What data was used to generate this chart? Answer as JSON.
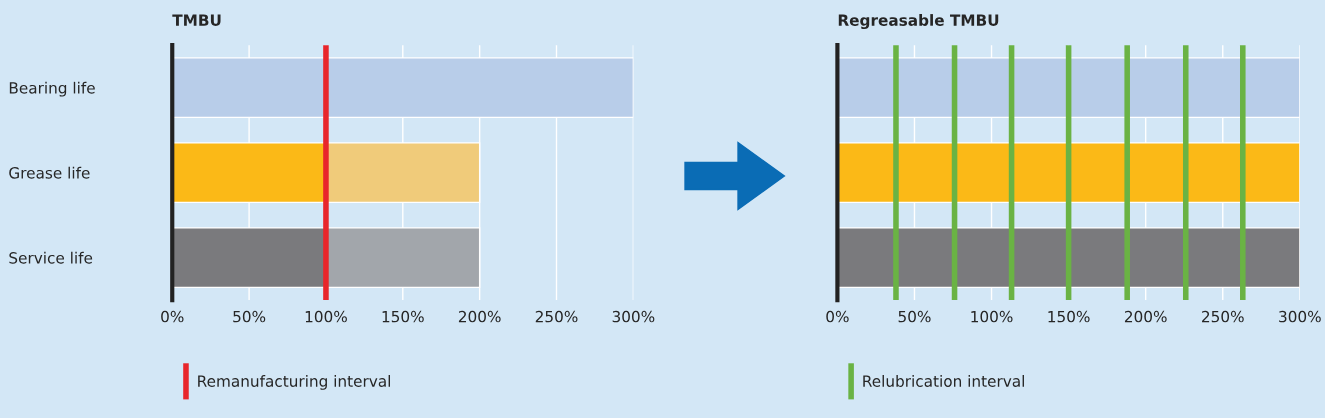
{
  "chart_data": [
    {
      "type": "bar",
      "orientation": "horizontal",
      "stacked": true,
      "title": "TMBU",
      "categories": [
        "Bearing life",
        "Grease life",
        "Service life"
      ],
      "series": [
        {
          "colors": [
            "#b8cde9",
            "#fbb917",
            "#7a7a7d"
          ],
          "values": [
            300,
            100,
            100
          ]
        },
        {
          "colors": [
            "#b8cde9",
            "#f0cb7a",
            "#a2a6ab"
          ],
          "values": [
            null,
            100,
            100
          ]
        }
      ],
      "xlim": [
        0,
        300
      ],
      "xticks": [
        {
          "value": 0,
          "label": "0%"
        },
        {
          "value": 50,
          "label": "50%"
        },
        {
          "value": 100,
          "label": "100%"
        },
        {
          "value": 150,
          "label": "150%"
        },
        {
          "value": 200,
          "label": "200%"
        },
        {
          "value": 250,
          "label": "250%"
        },
        {
          "value": 300,
          "label": "300%"
        }
      ],
      "grid": "x",
      "legend": "bottom",
      "ref_lines": [
        {
          "axis": "x",
          "value": 100,
          "label": "Remanufacturing interval",
          "color": "#e8262b"
        }
      ]
    },
    {
      "type": "bar",
      "orientation": "horizontal",
      "stacked": true,
      "title": "Regreasable TMBU",
      "categories": [
        null,
        null,
        null
      ],
      "series": [
        {
          "colors": [
            "#b8cde9",
            "#fbb917",
            "#7a7a7d"
          ],
          "values": [
            300,
            300,
            300
          ]
        }
      ],
      "xlim": [
        0,
        300
      ],
      "xticks": [
        {
          "value": 0,
          "label": "0%"
        },
        {
          "value": 50,
          "label": "50%"
        },
        {
          "value": 100,
          "label": "100%"
        },
        {
          "value": 150,
          "label": "150%"
        },
        {
          "value": 200,
          "label": "200%"
        },
        {
          "value": 250,
          "label": "250%"
        },
        {
          "value": 300,
          "label": "300%"
        }
      ],
      "grid": "x",
      "legend": "bottom",
      "ref_lines": [
        {
          "axis": "x",
          "value": 38,
          "label": "Relubrication interval",
          "color": "#6ab344"
        },
        {
          "axis": "x",
          "value": 76,
          "color": "#6ab344"
        },
        {
          "axis": "x",
          "value": 113,
          "color": "#6ab344"
        },
        {
          "axis": "x",
          "value": 150,
          "color": "#6ab344"
        },
        {
          "axis": "x",
          "value": 188,
          "color": "#6ab344"
        },
        {
          "axis": "x",
          "value": 226,
          "color": "#6ab344"
        },
        {
          "axis": "x",
          "value": 263,
          "color": "#6ab344"
        }
      ]
    }
  ]
}
